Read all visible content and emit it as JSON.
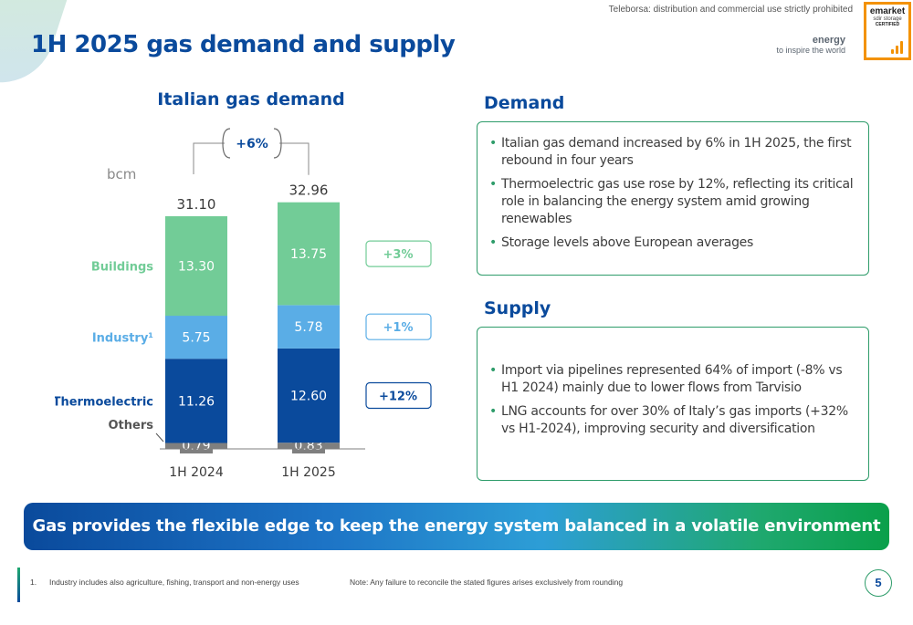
{
  "header": {
    "title": "1H 2025 gas demand and supply",
    "watermark": "Teleborsa: distribution and commercial use strictly prohibited",
    "brand_line1": "energy",
    "brand_line2": "to inspire the world"
  },
  "certification": {
    "line1": "emarket",
    "line2": "sdir storage",
    "line3": "CERTIFIED",
    "accent": "#f39200"
  },
  "chart_data": {
    "type": "bar",
    "stacked": true,
    "title": "Italian gas demand",
    "unit": "bcm",
    "categories": [
      "1H 2024",
      "1H 2025"
    ],
    "totals": [
      31.1,
      32.96
    ],
    "series": [
      {
        "name": "Others",
        "values": [
          0.79,
          0.83
        ],
        "color": "#7f7f7f"
      },
      {
        "name": "Thermoelectric",
        "values": [
          11.26,
          12.6
        ],
        "color": "#0a4a9c"
      },
      {
        "name": "Industry¹",
        "values": [
          5.75,
          5.78
        ],
        "color": "#5aade6"
      },
      {
        "name": "Buildings",
        "values": [
          13.3,
          13.75
        ],
        "color": "#72cc97"
      }
    ],
    "series_label_colors": {
      "Others": "#555555",
      "Thermoelectric": "#0a4a9c",
      "Industry¹": "#5aade6",
      "Buildings": "#72cc97"
    },
    "growth_total": "+6%",
    "growth": {
      "Buildings": "+3%",
      "Industry¹": "+1%",
      "Thermoelectric": "+12%"
    }
  },
  "demand": {
    "title": "Demand",
    "bullets": [
      "Italian gas demand increased by 6% in 1H 2025, the first rebound in four years",
      "Thermoelectric gas use rose by 12%, reflecting its critical role in balancing the energy system amid growing renewables",
      "Storage levels  above European averages"
    ]
  },
  "supply": {
    "title": "Supply",
    "bullets": [
      "Import via pipelines represented 64% of import (-8% vs H1 2024) mainly due to lower flows from Tarvisio",
      "LNG accounts for over 30% of Italy’s gas imports (+32% vs H1-2024), improving security and diversification"
    ]
  },
  "banner": {
    "text": "Gas provides the flexible edge to keep the energy system balanced in a volatile environment"
  },
  "footer": {
    "footnote_number": "1.",
    "footnote": "Industry includes also agriculture, fishing, transport and non-energy uses",
    "note": "Note:  Any failure to reconcile the stated figures arises exclusively from rounding",
    "page_number": "5"
  }
}
